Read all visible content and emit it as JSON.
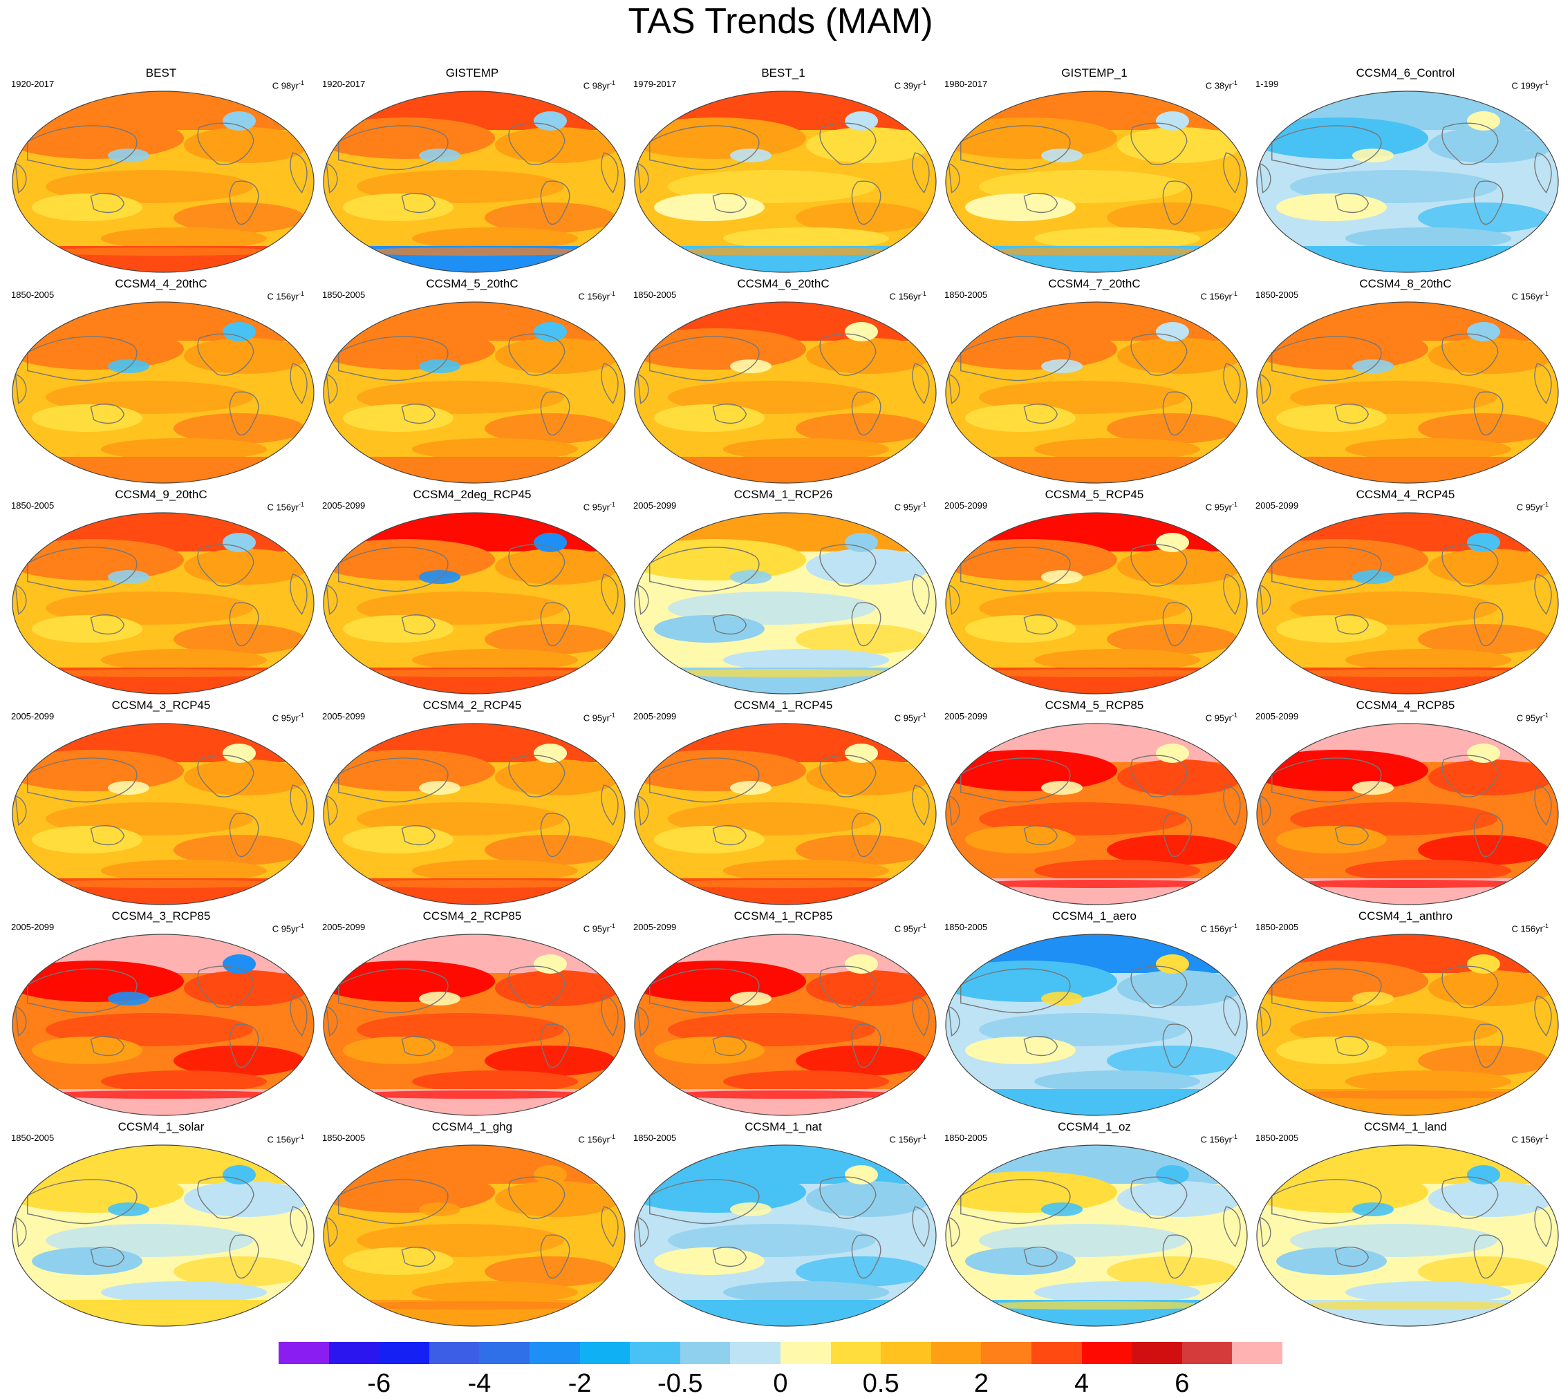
{
  "title": "TAS Trends (MAM)",
  "colors": {
    "ocean_outline": "#444444",
    "coast": "#777777"
  },
  "colorbar": {
    "colors": [
      "#8a1df0",
      "#2b16f0",
      "#1420f4",
      "#3c5ee6",
      "#2f6fe8",
      "#1e8ff5",
      "#10b0f5",
      "#48c2f5",
      "#8fd0ee",
      "#bde3f5",
      "#fff9ac",
      "#ffdd3c",
      "#ffc21e",
      "#ff9f14",
      "#ff7f18",
      "#ff4a12",
      "#ff0a00",
      "#d20f10",
      "#d63b3b",
      "#ffb2b2"
    ],
    "labels": [
      "-6",
      "-4",
      "-2",
      "-0.5",
      "0",
      "0.5",
      "2",
      "4",
      "6"
    ],
    "label_boundaries": [
      2,
      4,
      6,
      8,
      10,
      12,
      14,
      16,
      18
    ]
  },
  "panels": [
    {
      "title": "BEST",
      "period": "1920-2017",
      "units": "C 98yr",
      "scheme": "warm",
      "arctic": "#ff7f18",
      "antarctic": "#ff4a12",
      "anom": "#8fd0ee"
    },
    {
      "title": "GISTEMP",
      "period": "1920-2017",
      "units": "C 98yr",
      "scheme": "warm",
      "arctic": "#ff4a12",
      "antarctic": "#1e8ff5",
      "anom": "#8fd0ee"
    },
    {
      "title": "BEST_1",
      "period": "1979-2017",
      "units": "C 39yr",
      "scheme": "mixed",
      "arctic": "#ff4a12",
      "antarctic": "#48c2f5",
      "anom": "#bde3f5"
    },
    {
      "title": "GISTEMP_1",
      "period": "1980-2017",
      "units": "C 38yr",
      "scheme": "mixed",
      "arctic": "#ff7f18",
      "antarctic": "#48c2f5",
      "anom": "#bde3f5"
    },
    {
      "title": "CCSM4_6_Control",
      "period": "1-199",
      "units": "C 199yr",
      "scheme": "cool",
      "arctic": "#8fd0ee",
      "antarctic": "#48c2f5",
      "anom": "#fff9ac"
    },
    {
      "title": "CCSM4_4_20thC",
      "period": "1850-2005",
      "units": "C 156yr",
      "scheme": "warm",
      "arctic": "#ff7f18",
      "antarctic": "#ff7f18",
      "anom": "#48c2f5"
    },
    {
      "title": "CCSM4_5_20thC",
      "period": "1850-2005",
      "units": "C 156yr",
      "scheme": "warm",
      "arctic": "#ff7f18",
      "antarctic": "#ff7f18",
      "anom": "#48c2f5"
    },
    {
      "title": "CCSM4_6_20thC",
      "period": "1850-2005",
      "units": "C 156yr",
      "scheme": "warm",
      "arctic": "#ff4a12",
      "antarctic": "#ff7f18",
      "anom": "#fff9ac"
    },
    {
      "title": "CCSM4_7_20thC",
      "period": "1850-2005",
      "units": "C 156yr",
      "scheme": "warm",
      "arctic": "#ff7f18",
      "antarctic": "#ff7f18",
      "anom": "#bde3f5"
    },
    {
      "title": "CCSM4_8_20thC",
      "period": "1850-2005",
      "units": "C 156yr",
      "scheme": "warm",
      "arctic": "#ff7f18",
      "antarctic": "#ff7f18",
      "anom": "#8fd0ee"
    },
    {
      "title": "CCSM4_9_20thC",
      "period": "1850-2005",
      "units": "C 156yr",
      "scheme": "warm",
      "arctic": "#ff4a12",
      "antarctic": "#ff4a12",
      "anom": "#8fd0ee"
    },
    {
      "title": "CCSM4_2deg_RCP45",
      "period": "2005-2099",
      "units": "C 95yr",
      "scheme": "warm",
      "arctic": "#ff0a00",
      "antarctic": "#ff4a12",
      "anom": "#1e8ff5"
    },
    {
      "title": "CCSM4_1_RCP26",
      "period": "2005-2099",
      "units": "C 95yr",
      "scheme": "light",
      "arctic": "#ff9f14",
      "antarctic": "#8fd0ee",
      "anom": "#8fd0ee"
    },
    {
      "title": "CCSM4_5_RCP45",
      "period": "2005-2099",
      "units": "C 95yr",
      "scheme": "warm",
      "arctic": "#ff0a00",
      "antarctic": "#ff4a12",
      "anom": "#fff9ac"
    },
    {
      "title": "CCSM4_4_RCP45",
      "period": "2005-2099",
      "units": "C 95yr",
      "scheme": "warm",
      "arctic": "#ff4a12",
      "antarctic": "#ff4a12",
      "anom": "#48c2f5"
    },
    {
      "title": "CCSM4_3_RCP45",
      "period": "2005-2099",
      "units": "C 95yr",
      "scheme": "warm",
      "arctic": "#ff4a12",
      "antarctic": "#ff4a12",
      "anom": "#fff9ac"
    },
    {
      "title": "CCSM4_2_RCP45",
      "period": "2005-2099",
      "units": "C 95yr",
      "scheme": "warm",
      "arctic": "#ff4a12",
      "antarctic": "#ff4a12",
      "anom": "#fff9ac"
    },
    {
      "title": "CCSM4_1_RCP45",
      "period": "2005-2099",
      "units": "C 95yr",
      "scheme": "warm",
      "arctic": "#ff4a12",
      "antarctic": "#ff4a12",
      "anom": "#fff9ac"
    },
    {
      "title": "CCSM4_5_RCP85",
      "period": "2005-2099",
      "units": "C 95yr",
      "scheme": "hot",
      "arctic": "#ffb2b2",
      "antarctic": "#ffb2b2",
      "anom": "#fff9ac"
    },
    {
      "title": "CCSM4_4_RCP85",
      "period": "2005-2099",
      "units": "C 95yr",
      "scheme": "hot",
      "arctic": "#ffb2b2",
      "antarctic": "#ffb2b2",
      "anom": "#fff9ac"
    },
    {
      "title": "CCSM4_3_RCP85",
      "period": "2005-2099",
      "units": "C 95yr",
      "scheme": "hot",
      "arctic": "#ffb2b2",
      "antarctic": "#ffb2b2",
      "anom": "#1e8ff5"
    },
    {
      "title": "CCSM4_2_RCP85",
      "period": "2005-2099",
      "units": "C 95yr",
      "scheme": "hot",
      "arctic": "#ffb2b2",
      "antarctic": "#ffb2b2",
      "anom": "#fff9ac"
    },
    {
      "title": "CCSM4_1_RCP85",
      "period": "2005-2099",
      "units": "C 95yr",
      "scheme": "hot",
      "arctic": "#ffb2b2",
      "antarctic": "#ffb2b2",
      "anom": "#fff9ac"
    },
    {
      "title": "CCSM4_1_aero",
      "period": "1850-2005",
      "units": "C 156yr",
      "scheme": "cool",
      "arctic": "#1e8ff5",
      "antarctic": "#48c2f5",
      "anom": "#ffdd3c"
    },
    {
      "title": "CCSM4_1_anthro",
      "period": "1850-2005",
      "units": "C 156yr",
      "scheme": "warm",
      "arctic": "#ff4a12",
      "antarctic": "#ff9f14",
      "anom": "#ffdd3c"
    },
    {
      "title": "CCSM4_1_solar",
      "period": "1850-2005",
      "units": "C 156yr",
      "scheme": "light",
      "arctic": "#ffdd3c",
      "antarctic": "#ffdd3c",
      "anom": "#48c2f5"
    },
    {
      "title": "CCSM4_1_ghg",
      "period": "1850-2005",
      "units": "C 156yr",
      "scheme": "warm",
      "arctic": "#ff7f18",
      "antarctic": "#ff9f14",
      "anom": "#ff9f14"
    },
    {
      "title": "CCSM4_1_nat",
      "period": "1850-2005",
      "units": "C 156yr",
      "scheme": "cool",
      "arctic": "#48c2f5",
      "antarctic": "#48c2f5",
      "anom": "#fff9ac"
    },
    {
      "title": "CCSM4_1_oz",
      "period": "1850-2005",
      "units": "C 156yr",
      "scheme": "light",
      "arctic": "#8fd0ee",
      "antarctic": "#48c2f5",
      "anom": "#48c2f5"
    },
    {
      "title": "CCSM4_1_land",
      "period": "1850-2005",
      "units": "C 156yr",
      "scheme": "light",
      "arctic": "#ffdd3c",
      "antarctic": "#bde3f5",
      "anom": "#48c2f5"
    }
  ]
}
